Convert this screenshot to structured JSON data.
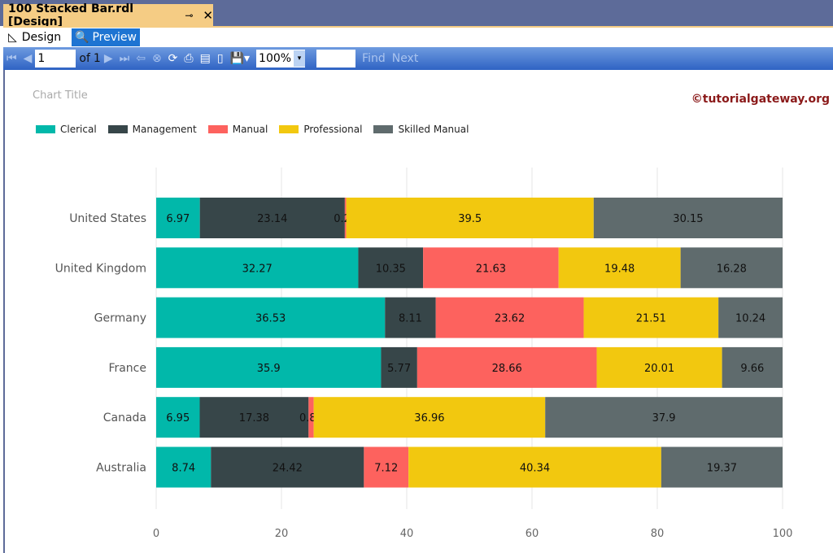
{
  "window": {
    "tab_title": "100 Stacked Bar.rdl [Design]"
  },
  "views": {
    "design": "Design",
    "preview": "Preview"
  },
  "toolbar": {
    "page": "1",
    "of_label": "of",
    "page_count": "1",
    "zoom": "100%",
    "find_value": "",
    "find": "Find",
    "next": "Next"
  },
  "report": {
    "watermark": "©tutorialgateway.org"
  },
  "chart_data": {
    "type": "bar",
    "orientation": "horizontal",
    "stacking": "100%",
    "title": "Chart Title",
    "categories": [
      "United States",
      "United Kingdom",
      "Germany",
      "France",
      "Canada",
      "Australia"
    ],
    "series": [
      {
        "name": "Clerical",
        "color": "#01b8aa",
        "values": [
          6.97,
          32.27,
          36.53,
          35.9,
          6.95,
          8.74
        ]
      },
      {
        "name": "Management",
        "color": "#374649",
        "values": [
          23.14,
          10.35,
          8.11,
          5.77,
          17.38,
          24.42
        ]
      },
      {
        "name": "Manual",
        "color": "#fd625e",
        "values": [
          0.23,
          21.63,
          23.62,
          28.66,
          0.82,
          7.12
        ]
      },
      {
        "name": "Professional",
        "color": "#f2c80f",
        "values": [
          39.5,
          19.48,
          21.51,
          20.01,
          36.96,
          40.34
        ]
      },
      {
        "name": "Skilled Manual",
        "color": "#5f6b6d",
        "values": [
          30.15,
          16.28,
          10.24,
          9.66,
          37.9,
          19.37
        ]
      }
    ],
    "xlim": [
      0,
      100
    ],
    "xticks": [
      "0",
      "20",
      "40",
      "60",
      "80",
      "100"
    ],
    "grid": true,
    "legend": "top-left"
  }
}
